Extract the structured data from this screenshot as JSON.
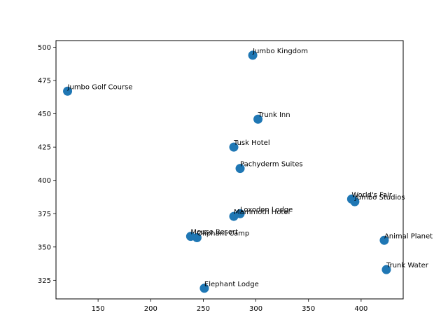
{
  "chart_data": {
    "type": "scatter",
    "title": "",
    "xlabel": "",
    "ylabel": "",
    "xlim": [
      110,
      440
    ],
    "ylim": [
      311,
      505
    ],
    "xticks": [
      150,
      200,
      250,
      300,
      350,
      400
    ],
    "yticks": [
      325,
      350,
      375,
      400,
      425,
      450,
      475,
      500
    ],
    "grid": false,
    "marker_color": "#1f77b4",
    "points": [
      {
        "label": "Jumbo Kingdom",
        "x": 297,
        "y": 494
      },
      {
        "label": "Jumbo Golf Course",
        "x": 121,
        "y": 467
      },
      {
        "label": "Trunk Inn",
        "x": 302,
        "y": 446
      },
      {
        "label": "Tusk Hotel",
        "x": 279,
        "y": 425
      },
      {
        "label": "Pachyderm Suites",
        "x": 285,
        "y": 409
      },
      {
        "label": "World's Fair",
        "x": 391,
        "y": 386
      },
      {
        "label": "Jumbo Studios",
        "x": 394,
        "y": 384
      },
      {
        "label": "Loxodon Lodge",
        "x": 285,
        "y": 375
      },
      {
        "label": "Mammoth Hotel",
        "x": 279,
        "y": 373
      },
      {
        "label": "Mouse Resort",
        "x": 238,
        "y": 358
      },
      {
        "label": "Oliphant Camp",
        "x": 244,
        "y": 357
      },
      {
        "label": "Animal Planet",
        "x": 422,
        "y": 355
      },
      {
        "label": "Trunk Water",
        "x": 424,
        "y": 333
      },
      {
        "label": "Elephant Lodge",
        "x": 251,
        "y": 319
      }
    ]
  }
}
